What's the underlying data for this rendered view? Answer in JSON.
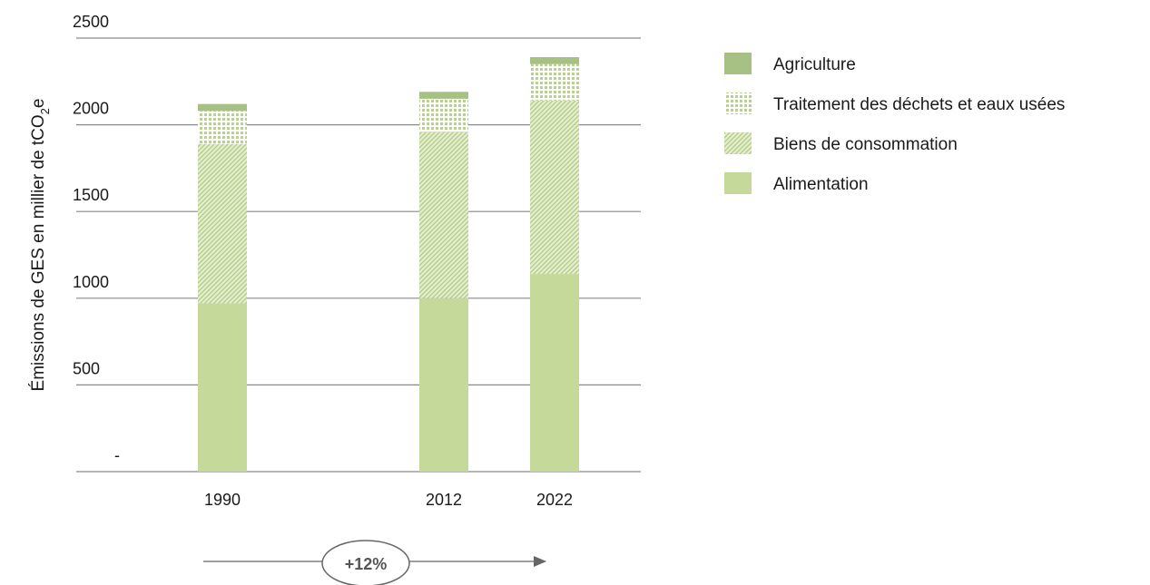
{
  "chart_data": {
    "type": "bar",
    "stacked": true,
    "categories": [
      "1990",
      "2012",
      "2022"
    ],
    "series": [
      {
        "name": "Alimentation",
        "values": [
          970,
          1000,
          1140
        ],
        "color": "#c5d99b",
        "pattern": "solid"
      },
      {
        "name": "Biens de consommation",
        "values": [
          920,
          960,
          1000
        ],
        "color": "#c5d99b",
        "pattern": "diagonal-hatch"
      },
      {
        "name": "Traitement des déchets et eaux usées",
        "values": [
          190,
          190,
          210
        ],
        "color": "#c5d99b",
        "pattern": "dotted-grid"
      },
      {
        "name": "Agriculture",
        "values": [
          40,
          40,
          40
        ],
        "color": "#a7c084",
        "pattern": "solid"
      }
    ],
    "title": "",
    "xlabel": "",
    "ylabel": "Émissions de GES en millier de tCO",
    "ylabel_subscript": "2",
    "ylabel_suffix": "e",
    "ylim": [
      0,
      2500
    ],
    "yticks": [
      {
        "value": 0,
        "label": "-"
      },
      {
        "value": 500,
        "label": "500"
      },
      {
        "value": 1000,
        "label": "1000"
      },
      {
        "value": 1500,
        "label": "1500"
      },
      {
        "value": 2000,
        "label": "2000"
      },
      {
        "value": 2500,
        "label": "2500"
      }
    ],
    "grid": true,
    "legend_position": "right",
    "legend_order": [
      "Agriculture",
      "Traitement des déchets et eaux usées",
      "Biens de consommation",
      "Alimentation"
    ],
    "annotation": {
      "text": "+12%",
      "from": "1990",
      "to": "2022",
      "style": "arrow-with-badge"
    }
  }
}
